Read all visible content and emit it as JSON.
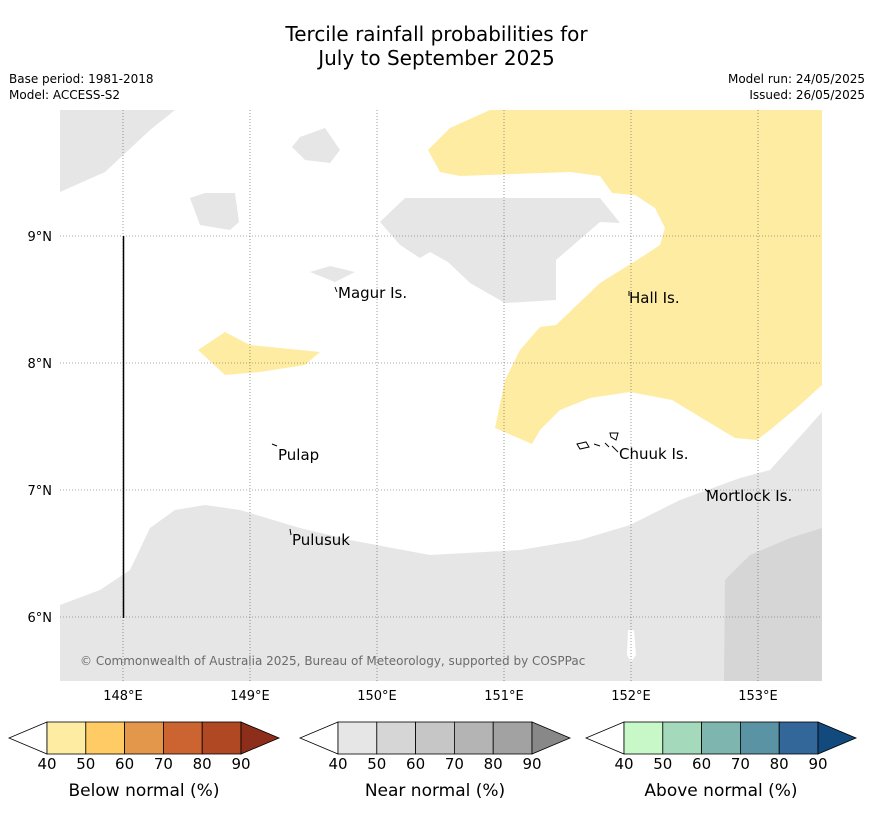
{
  "title_line1": "Tercile rainfall probabilities for",
  "title_line2": "July to September 2025",
  "meta_left": [
    "Base period: 1981-2018",
    "Model: ACCESS-S2"
  ],
  "meta_right": [
    "Model run: 24/05/2025",
    "Issued: 26/05/2025"
  ],
  "map": {
    "lat_labels": [
      "9°N",
      "8°N",
      "7°N",
      "6°N"
    ],
    "lon_labels": [
      "148°E",
      "149°E",
      "150°E",
      "151°E",
      "152°E",
      "153°E"
    ],
    "places": [
      "Magur Is.",
      "Hall Is.",
      "Pulap",
      "Chuuk Is.",
      "Mortlock Is.",
      "Pulusuk"
    ],
    "copyright": "© Commonwealth of Australia 2025, Bureau of Meteorology, supported by COSPPac",
    "colors": {
      "below_40": "#ffeca3",
      "near_40": "#e6e6e6",
      "near_50": "#d6d6d6"
    }
  },
  "legends": [
    {
      "title": "Below normal (%)",
      "ticks": [
        "40",
        "50",
        "60",
        "70",
        "80",
        "90"
      ],
      "colors": [
        "#ffffff",
        "#ffeca3",
        "#fecb65",
        "#e3974a",
        "#cc6432",
        "#b04824",
        "#8c2e1a"
      ]
    },
    {
      "title": "Near normal (%)",
      "ticks": [
        "40",
        "50",
        "60",
        "70",
        "80",
        "90"
      ],
      "colors": [
        "#ffffff",
        "#e6e6e6",
        "#d6d6d6",
        "#c6c6c6",
        "#b4b4b4",
        "#a2a2a2",
        "#888888"
      ]
    },
    {
      "title": "Above normal (%)",
      "ticks": [
        "40",
        "50",
        "60",
        "70",
        "80",
        "90"
      ],
      "colors": [
        "#ffffff",
        "#c8f7c8",
        "#a4d9bc",
        "#7fb5af",
        "#5a93a4",
        "#336699",
        "#134a7d"
      ]
    }
  ]
}
